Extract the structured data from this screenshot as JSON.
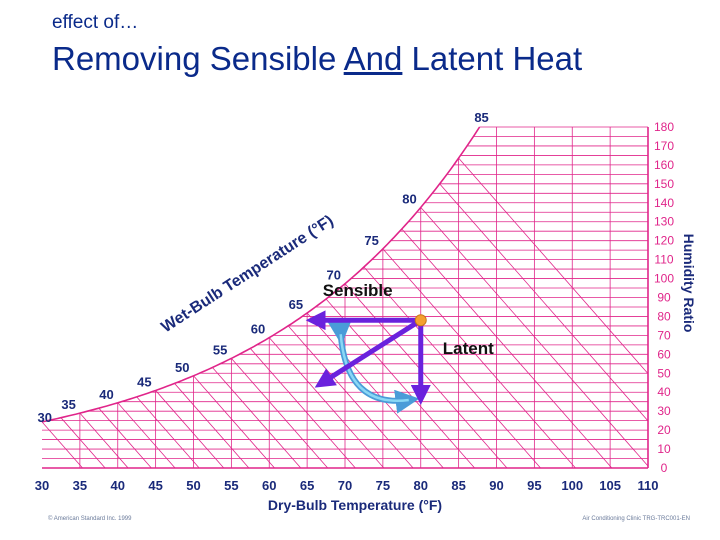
{
  "header": {
    "subtitle": "effect of…",
    "title_part1": "Removing Sensible ",
    "title_underlined": "And",
    "title_part2": " Latent Heat"
  },
  "chart_data": {
    "type": "psychrometric",
    "title": "Removing Sensible And Latent Heat",
    "xlabel": "Dry-Bulb Temperature (°F)",
    "ylabel": "Humidity Ratio",
    "curve_label": "Wet-Bulb Temperature (°F)",
    "x_ticks": [
      "30",
      "35",
      "40",
      "45",
      "50",
      "55",
      "60",
      "65",
      "70",
      "75",
      "80",
      "85",
      "90",
      "95",
      "100",
      "105",
      "110"
    ],
    "y_ticks": [
      "0",
      "10",
      "20",
      "30",
      "40",
      "50",
      "60",
      "70",
      "80",
      "90",
      "100",
      "110",
      "120",
      "130",
      "140",
      "150",
      "160",
      "170",
      "180"
    ],
    "xlim": [
      30,
      110
    ],
    "ylim": [
      0,
      180
    ],
    "wet_bulb_labels": [
      {
        "text": "30",
        "t": 30
      },
      {
        "text": "35",
        "t": 35
      },
      {
        "text": "40",
        "t": 40
      },
      {
        "text": "45",
        "t": 45
      },
      {
        "text": "50",
        "t": 50
      },
      {
        "text": "55",
        "t": 55
      },
      {
        "text": "60",
        "t": 60
      },
      {
        "text": "65",
        "t": 65
      },
      {
        "text": "70",
        "t": 70
      },
      {
        "text": "75",
        "t": 75
      },
      {
        "text": "80",
        "t": 80
      },
      {
        "text": "85",
        "t": 85
      }
    ],
    "process": {
      "state_point": {
        "db": 80,
        "w": 78
      },
      "sensible_end": {
        "db": 66,
        "w": 78
      },
      "latent_end": {
        "db": 80,
        "w": 38
      },
      "combined_end": {
        "db": 67,
        "w": 45
      },
      "sensible_label": "Sensible",
      "latent_label": "Latent"
    }
  },
  "footer": {
    "left": "© American Standard Inc. 1999",
    "right": "Air Conditioning Clinic TRG-TRC001-EN"
  },
  "colors": {
    "grid": "#e0258a",
    "title": "#0a2a8a",
    "axis_text": "#1a2a7a",
    "arrow": "#6a22dd",
    "curved_arrow": "#55c0e8",
    "state_point": "#f5a030"
  }
}
